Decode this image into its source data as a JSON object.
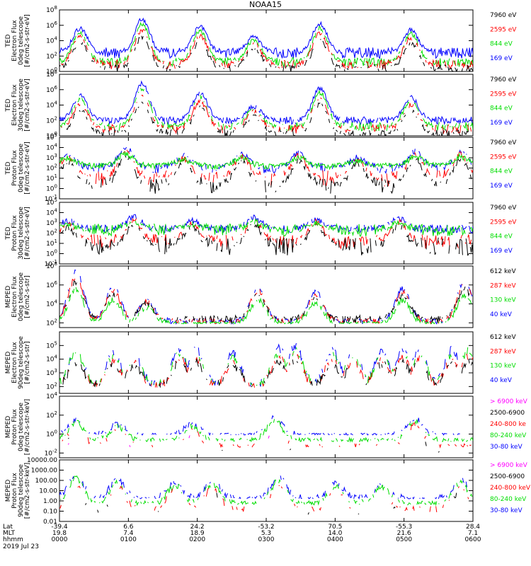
{
  "title": "NOAA15",
  "colors": {
    "blue": "#0000ff",
    "red": "#ff0000",
    "green": "#00dd00",
    "black": "#000000",
    "magenta": "#ff00ff"
  },
  "chart_data": [
    {
      "type": "line",
      "ylabel": [
        "TED",
        "Electron Flux",
        "0deg telescope",
        "[#/cm2-s-str-eV]"
      ],
      "ylog": true,
      "ylim_exp": [
        0,
        8
      ],
      "yticks": [
        {
          "e": 0,
          "t": "10^0"
        },
        {
          "e": 2,
          "t": "10^2"
        },
        {
          "e": 4,
          "t": "10^4"
        },
        {
          "e": 6,
          "t": "10^6"
        },
        {
          "e": 8,
          "t": "10^8"
        }
      ],
      "legend": [
        {
          "text": "7960 eV",
          "color": "black"
        },
        {
          "text": "2595 eV",
          "color": "red"
        },
        {
          "text": "844 eV",
          "color": "green"
        },
        {
          "text": "169 eV",
          "color": "blue"
        }
      ],
      "series": [
        {
          "color": "blue",
          "baseline": 2.4,
          "noise": 0.7,
          "gap": 0
        },
        {
          "color": "green",
          "baseline": 1.2,
          "noise": 0.6,
          "gap": 0.15
        },
        {
          "color": "red",
          "baseline": 0.9,
          "noise": 0.6,
          "gap": 0.25
        },
        {
          "color": "black",
          "baseline": 0.4,
          "noise": 0.5,
          "gap": 0.35
        }
      ],
      "peaks": [
        [
          0.05,
          5.6
        ],
        [
          0.2,
          6.8
        ],
        [
          0.34,
          5.8
        ],
        [
          0.47,
          4.5
        ],
        [
          0.63,
          6.2
        ],
        [
          0.85,
          5.4
        ]
      ]
    },
    {
      "type": "line",
      "ylabel": [
        "TED",
        "Electron Flux",
        "30deg telescope",
        "[#/cm2-s-str-eV]"
      ],
      "ylog": true,
      "ylim_exp": [
        0,
        8
      ],
      "yticks": [
        {
          "e": 0,
          "t": "10^0"
        },
        {
          "e": 2,
          "t": "10^2"
        },
        {
          "e": 4,
          "t": "10^4"
        },
        {
          "e": 6,
          "t": "10^6"
        },
        {
          "e": 8,
          "t": "10^8"
        }
      ],
      "legend": [
        {
          "text": "7960 eV",
          "color": "black"
        },
        {
          "text": "2595 eV",
          "color": "red"
        },
        {
          "text": "844 eV",
          "color": "green"
        },
        {
          "text": "169 eV",
          "color": "blue"
        }
      ],
      "series": [
        {
          "color": "blue",
          "baseline": 2.0,
          "noise": 0.5,
          "gap": 0.05
        },
        {
          "color": "green",
          "baseline": 1.2,
          "noise": 0.6,
          "gap": 0.25
        },
        {
          "color": "red",
          "baseline": 0.9,
          "noise": 0.6,
          "gap": 0.3
        },
        {
          "color": "black",
          "baseline": 0.3,
          "noise": 0.6,
          "gap": 0.35
        }
      ],
      "peaks": [
        [
          0.05,
          5.2
        ],
        [
          0.2,
          6.8
        ],
        [
          0.34,
          5.6
        ],
        [
          0.47,
          3.8
        ],
        [
          0.63,
          6.2
        ],
        [
          0.85,
          5.0
        ]
      ]
    },
    {
      "type": "line",
      "ylabel": [
        "TED",
        "Proton Flux",
        "0deg telescope",
        "[#/cm2-s-str-eV]"
      ],
      "ylog": true,
      "ylim_exp": [
        -1,
        5
      ],
      "yticks": [
        {
          "e": -1,
          "t": "10^-1"
        },
        {
          "e": 0,
          "t": "10^0"
        },
        {
          "e": 1,
          "t": "10^1"
        },
        {
          "e": 2,
          "t": "10^2"
        },
        {
          "e": 3,
          "t": "10^3"
        },
        {
          "e": 4,
          "t": "10^4"
        },
        {
          "e": 5,
          "t": "10^5"
        }
      ],
      "legend": [
        {
          "text": "7960 eV",
          "color": "black"
        },
        {
          "text": "2595 eV",
          "color": "red"
        },
        {
          "text": "844 eV",
          "color": "green"
        },
        {
          "text": "169 eV",
          "color": "blue"
        }
      ],
      "series": [
        {
          "color": "blue",
          "baseline": 2.0,
          "noise": 0.5,
          "gap": 0.2
        },
        {
          "color": "red",
          "baseline": 1.0,
          "noise": 0.8,
          "gap": 0.3
        },
        {
          "color": "black",
          "baseline": 0.3,
          "noise": 0.8,
          "gap": 0.3
        },
        {
          "color": "green",
          "baseline": 2.2,
          "noise": 0.3,
          "gap": 0
        }
      ],
      "peaks": [
        [
          0.02,
          3.4
        ],
        [
          0.16,
          4.0
        ],
        [
          0.3,
          3.2
        ],
        [
          0.44,
          3.4
        ],
        [
          0.58,
          3.5
        ],
        [
          0.72,
          3.0
        ],
        [
          0.86,
          3.6
        ],
        [
          0.97,
          3.6
        ]
      ]
    },
    {
      "type": "line",
      "ylabel": [
        "TED",
        "Proton Flux",
        "30deg telescope",
        "[#/cm2-s-str-eV]"
      ],
      "ylog": true,
      "ylim_exp": [
        -1,
        5
      ],
      "yticks": [
        {
          "e": -1,
          "t": "10^-1"
        },
        {
          "e": 0,
          "t": "10^0"
        },
        {
          "e": 1,
          "t": "10^1"
        },
        {
          "e": 2,
          "t": "10^2"
        },
        {
          "e": 3,
          "t": "10^3"
        },
        {
          "e": 4,
          "t": "10^4"
        },
        {
          "e": 5,
          "t": "10^5"
        }
      ],
      "legend": [
        {
          "text": "7960 eV",
          "color": "black"
        },
        {
          "text": "2595 eV",
          "color": "red"
        },
        {
          "text": "844 eV",
          "color": "green"
        },
        {
          "text": "169 eV",
          "color": "blue"
        }
      ],
      "series": [
        {
          "color": "blue",
          "baseline": 2.4,
          "noise": 0.4,
          "gap": 0.15
        },
        {
          "color": "red",
          "baseline": 1.2,
          "noise": 0.7,
          "gap": 0.3
        },
        {
          "color": "black",
          "baseline": 0.7,
          "noise": 0.9,
          "gap": 0.3
        },
        {
          "color": "green",
          "baseline": 2.3,
          "noise": 0.6,
          "gap": 0.1
        }
      ],
      "peaks": [
        [
          0.02,
          3.2
        ],
        [
          0.18,
          3.6
        ],
        [
          0.32,
          3.2
        ],
        [
          0.47,
          3.5
        ],
        [
          0.62,
          3.3
        ],
        [
          0.82,
          3.4
        ]
      ]
    },
    {
      "type": "line",
      "ylabel": [
        "MEPED",
        "Electron Flux",
        "0deg telescope",
        "[#/cm2-s-str]"
      ],
      "ylog": true,
      "ylim_exp": [
        1.5,
        8
      ],
      "yticks": [
        {
          "e": 2,
          "t": "10^2"
        },
        {
          "e": 4,
          "t": "10^4"
        },
        {
          "e": 6,
          "t": "10^6"
        },
        {
          "e": 8,
          "t": "10^8"
        }
      ],
      "legend": [
        {
          "text": "612 keV",
          "color": "black"
        },
        {
          "text": "287 keV",
          "color": "red"
        },
        {
          "text": "130 keV",
          "color": "green"
        },
        {
          "text": "40 keV",
          "color": "blue"
        }
      ],
      "series": [
        {
          "color": "blue",
          "baseline": 2.2,
          "noise": 0.3,
          "gap": 0.3
        },
        {
          "color": "red",
          "baseline": 2.2,
          "noise": 0.3,
          "gap": 0.3
        },
        {
          "color": "black",
          "baseline": 2.4,
          "noise": 0.4,
          "gap": 0.3
        },
        {
          "color": "green",
          "baseline": 2.0,
          "noise": 0.1,
          "gap": 0.2
        }
      ],
      "peaks": [
        [
          0.04,
          7.5
        ],
        [
          0.13,
          5.8
        ],
        [
          0.21,
          4.5
        ],
        [
          0.48,
          5.8
        ],
        [
          0.62,
          5.2
        ],
        [
          0.83,
          5.6
        ],
        [
          0.98,
          6.6
        ]
      ]
    },
    {
      "type": "line",
      "ylabel": [
        "MEPED",
        "Electron Flux",
        "90deg telescope",
        "[#/cm2-s-str]"
      ],
      "ylog": true,
      "ylim_exp": [
        1.5,
        6
      ],
      "yticks": [
        {
          "e": 2,
          "t": "10^2"
        },
        {
          "e": 3,
          "t": "10^3"
        },
        {
          "e": 4,
          "t": "10^4"
        },
        {
          "e": 5,
          "t": "10^5"
        }
      ],
      "legend": [
        {
          "text": "612 keV",
          "color": "black"
        },
        {
          "text": "287 keV",
          "color": "red"
        },
        {
          "text": "130 keV",
          "color": "green"
        },
        {
          "text": "40 keV",
          "color": "blue"
        }
      ],
      "series": [
        {
          "color": "blue",
          "baseline": 2.1,
          "noise": 0.1,
          "gap": 0.45
        },
        {
          "color": "green",
          "baseline": 2.1,
          "noise": 0.1,
          "gap": 0.45
        },
        {
          "color": "red",
          "baseline": 2.0,
          "noise": 0.1,
          "gap": 0.45
        },
        {
          "color": "black",
          "baseline": 2.0,
          "noise": 0.1,
          "gap": 0.45
        }
      ],
      "peaks": [
        [
          0.04,
          4.8
        ],
        [
          0.13,
          4.5
        ],
        [
          0.18,
          4.3
        ],
        [
          0.29,
          4.8
        ],
        [
          0.33,
          4.7
        ],
        [
          0.42,
          4.4
        ],
        [
          0.53,
          4.8
        ],
        [
          0.57,
          5.0
        ],
        [
          0.66,
          4.6
        ],
        [
          0.71,
          4.5
        ],
        [
          0.78,
          4.6
        ],
        [
          0.83,
          4.7
        ],
        [
          0.87,
          4.7
        ],
        [
          0.95,
          4.7
        ],
        [
          0.99,
          5.0
        ]
      ]
    },
    {
      "type": "line",
      "ylabel": [
        "MEPED",
        "Proton Flux",
        "0deg telescope",
        "[#/cm2-s-str-keV]"
      ],
      "ylog": true,
      "ylim_exp": [
        -2.5,
        4
      ],
      "yticks": [
        {
          "e": -2,
          "t": "10^-2"
        },
        {
          "e": 0,
          "t": "10^0"
        },
        {
          "e": 2,
          "t": "10^2"
        },
        {
          "e": 4,
          "t": "10^4"
        }
      ],
      "legend": [
        {
          "text": "> 6900 keV",
          "color": "magenta"
        },
        {
          "text": "2500-6900",
          "color": "black"
        },
        {
          "text": "240-800 ke",
          "color": "red"
        },
        {
          "text": "80-240 keV",
          "color": "green"
        },
        {
          "text": "30-80 keV",
          "color": "blue"
        }
      ],
      "series": [
        {
          "color": "blue",
          "baseline": 0.0,
          "noise": 0.1,
          "gap": 0.4
        },
        {
          "color": "green",
          "baseline": -0.6,
          "noise": 0.2,
          "gap": 0.3
        },
        {
          "color": "red",
          "baseline": -1.2,
          "noise": 0.2,
          "gap": 0.6
        },
        {
          "color": "black",
          "baseline": -1.8,
          "noise": 0.2,
          "gap": 0.9
        },
        {
          "color": "magenta",
          "baseline": -1.8,
          "noise": 0.2,
          "gap": 0.95
        }
      ],
      "peaks": [
        [
          0.04,
          1.5
        ],
        [
          0.14,
          1.0
        ],
        [
          0.32,
          1.0
        ],
        [
          0.52,
          1.8
        ],
        [
          0.86,
          1.6
        ]
      ]
    },
    {
      "type": "line",
      "ylabel": [
        "MEPED",
        "Proton Flux",
        "90deg telescope",
        "[#/cm2-s-str-keV]"
      ],
      "ylog": true,
      "ylim_exp": [
        -2,
        4
      ],
      "yticks": [
        {
          "e": -2,
          "t": "0.01"
        },
        {
          "e": -1,
          "t": "0.10"
        },
        {
          "e": 0,
          "t": "1.00"
        },
        {
          "e": 1,
          "t": "10.00"
        },
        {
          "e": 2,
          "t": "100.00"
        },
        {
          "e": 3,
          "t": "1000.00"
        },
        {
          "e": 4,
          "t": "10000.00"
        }
      ],
      "legend": [
        {
          "text": "> 6900 keV",
          "color": "magenta"
        },
        {
          "text": "2500-6900",
          "color": "black"
        },
        {
          "text": "240-800 keV",
          "color": "red"
        },
        {
          "text": "80-240 keV",
          "color": "green"
        },
        {
          "text": "30-80 keV",
          "color": "blue"
        }
      ],
      "series": [
        {
          "color": "blue",
          "baseline": 0.3,
          "noise": 0.1,
          "gap": 0.35
        },
        {
          "color": "green",
          "baseline": -0.2,
          "noise": 0.2,
          "gap": 0.3
        },
        {
          "color": "red",
          "baseline": -0.8,
          "noise": 0.3,
          "gap": 0.6
        },
        {
          "color": "black",
          "baseline": -1.2,
          "noise": 0.2,
          "gap": 0.8
        },
        {
          "color": "magenta",
          "baseline": -1.8,
          "noise": 0.2,
          "gap": 0.95
        }
      ],
      "peaks": [
        [
          0.04,
          2.5
        ],
        [
          0.14,
          2.0
        ],
        [
          0.28,
          1.7
        ],
        [
          0.37,
          1.9
        ],
        [
          0.53,
          2.3
        ],
        [
          0.67,
          1.7
        ],
        [
          0.78,
          1.5
        ],
        [
          0.97,
          2.0
        ]
      ]
    }
  ],
  "xaxis": {
    "row_labels": [
      "Lat",
      "MLT",
      "hhmm",
      "2019 Jul 23"
    ],
    "ticks": [
      {
        "f": 0.0,
        "lat": "-39.4",
        "mlt": "19.8",
        "time": "0000"
      },
      {
        "f": 0.1667,
        "lat": "6.6",
        "mlt": "7.4",
        "time": "0100"
      },
      {
        "f": 0.3333,
        "lat": "24.2",
        "mlt": "18.9",
        "time": "0200"
      },
      {
        "f": 0.5,
        "lat": "-53.2",
        "mlt": "5.3",
        "time": "0300"
      },
      {
        "f": 0.6667,
        "lat": "70.5",
        "mlt": "14.0",
        "time": "0400"
      },
      {
        "f": 0.8333,
        "lat": "-55.3",
        "mlt": "21.6",
        "time": "0500"
      },
      {
        "f": 1.0,
        "lat": "28.4",
        "mlt": "7.1",
        "time": "0600"
      }
    ]
  }
}
